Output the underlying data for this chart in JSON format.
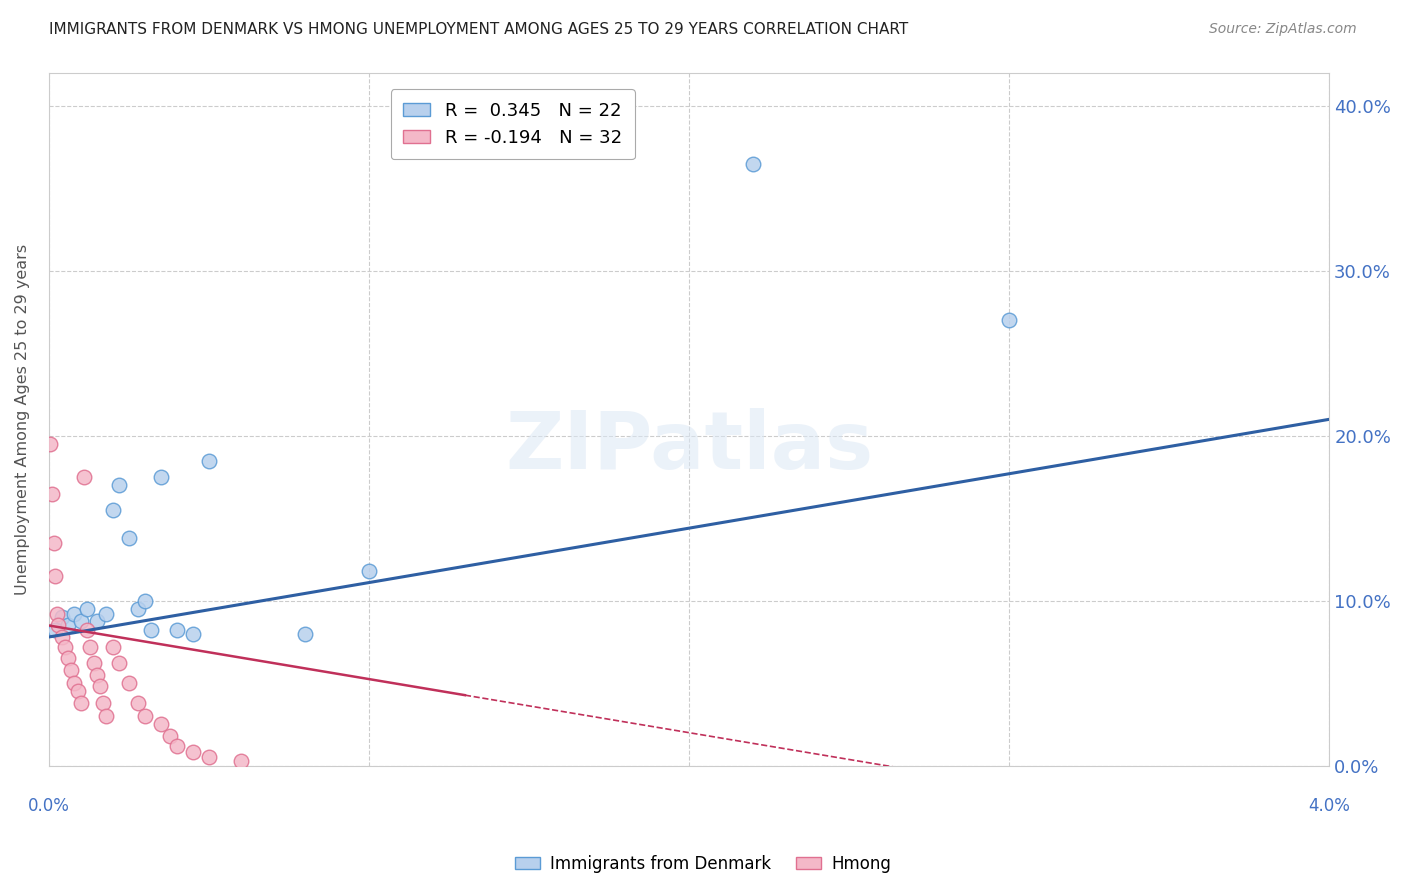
{
  "title": "IMMIGRANTS FROM DENMARK VS HMONG UNEMPLOYMENT AMONG AGES 25 TO 29 YEARS CORRELATION CHART",
  "source": "Source: ZipAtlas.com",
  "ylabel": "Unemployment Among Ages 25 to 29 years",
  "ytick_vals": [
    0.0,
    0.1,
    0.2,
    0.3,
    0.4
  ],
  "xlim": [
    0.0,
    0.04
  ],
  "ylim": [
    -0.02,
    0.44
  ],
  "plot_ylim": [
    0.0,
    0.42
  ],
  "watermark": "ZIPatlas",
  "denmark_R": 0.345,
  "denmark_N": 22,
  "hmong_R": -0.194,
  "hmong_N": 32,
  "denmark_color": "#b8d0ed",
  "denmark_edge": "#5b9bd5",
  "hmong_color": "#f4b8c8",
  "hmong_edge": "#e07090",
  "denmark_x": [
    0.0002,
    0.0004,
    0.0006,
    0.0008,
    0.001,
    0.0012,
    0.0015,
    0.0018,
    0.002,
    0.0022,
    0.0025,
    0.0028,
    0.003,
    0.0032,
    0.0035,
    0.004,
    0.0045,
    0.005,
    0.008,
    0.01,
    0.022,
    0.03
  ],
  "denmark_y": [
    0.082,
    0.09,
    0.085,
    0.092,
    0.088,
    0.095,
    0.088,
    0.092,
    0.155,
    0.17,
    0.138,
    0.095,
    0.1,
    0.082,
    0.175,
    0.082,
    0.08,
    0.185,
    0.08,
    0.118,
    0.365,
    0.27
  ],
  "hmong_x": [
    5e-05,
    0.0001,
    0.00015,
    0.0002,
    0.00025,
    0.0003,
    0.0004,
    0.0005,
    0.0006,
    0.0007,
    0.0008,
    0.0009,
    0.001,
    0.0011,
    0.0012,
    0.0013,
    0.0014,
    0.0015,
    0.0016,
    0.0017,
    0.0018,
    0.002,
    0.0022,
    0.0025,
    0.0028,
    0.003,
    0.0035,
    0.0038,
    0.004,
    0.0045,
    0.005,
    0.006
  ],
  "hmong_y": [
    0.195,
    0.165,
    0.135,
    0.115,
    0.092,
    0.085,
    0.078,
    0.072,
    0.065,
    0.058,
    0.05,
    0.045,
    0.038,
    0.175,
    0.082,
    0.072,
    0.062,
    0.055,
    0.048,
    0.038,
    0.03,
    0.072,
    0.062,
    0.05,
    0.038,
    0.03,
    0.025,
    0.018,
    0.012,
    0.008,
    0.005,
    0.003
  ],
  "denmark_line_color": "#2e5fa3",
  "hmong_line_color": "#c0305a",
  "hmong_line_solid_end": 0.013,
  "legend_denmark_label": "Immigrants from Denmark",
  "legend_hmong_label": "Hmong",
  "background_color": "#ffffff",
  "grid_color": "#cccccc"
}
